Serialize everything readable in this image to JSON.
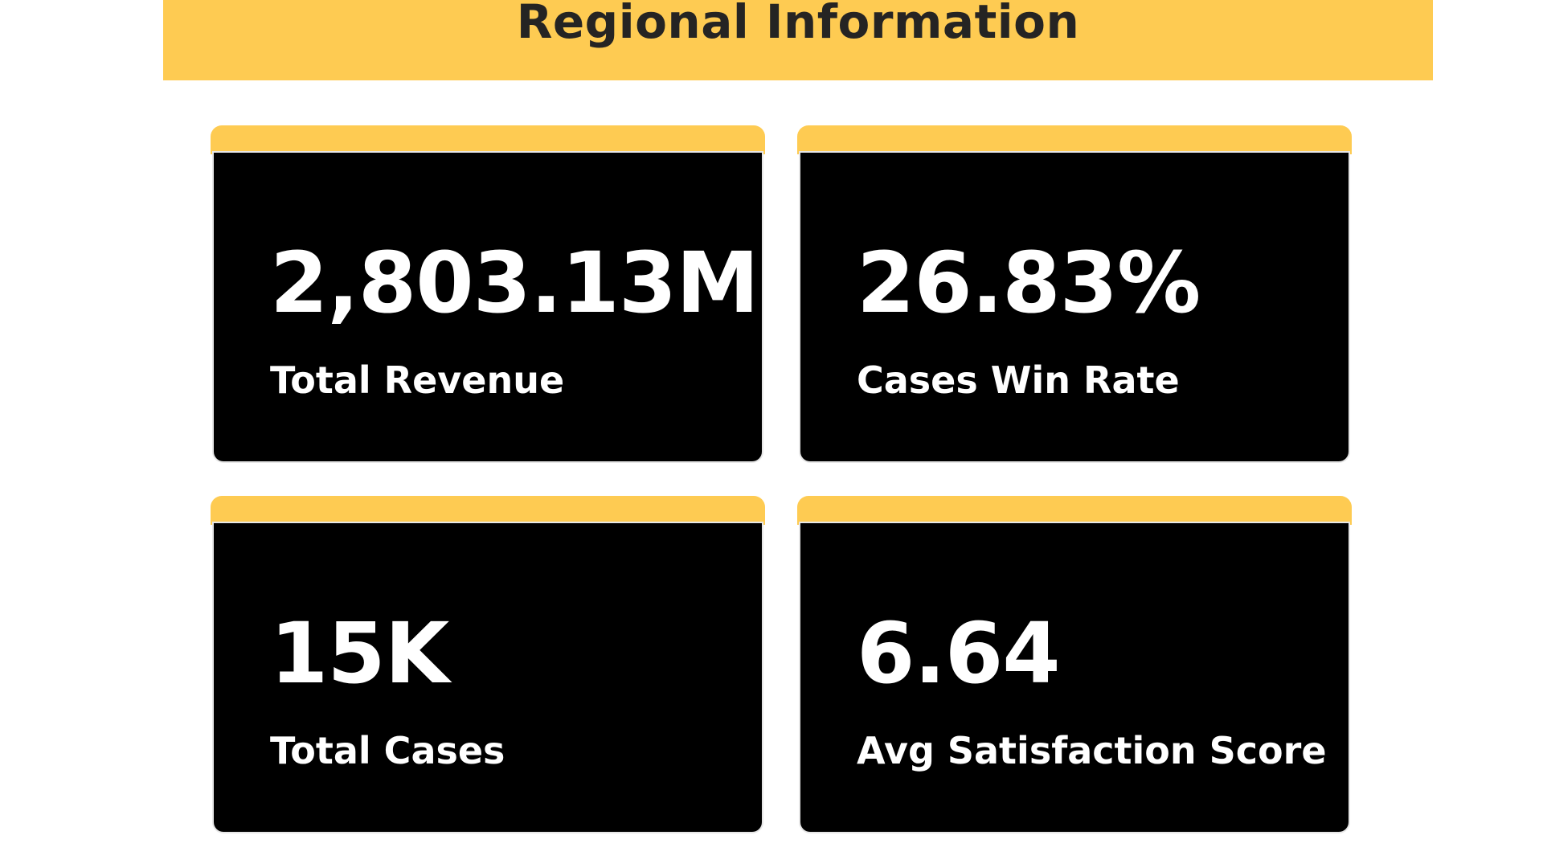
{
  "header": {
    "title": "Regional Information",
    "background_color": "#FECB52",
    "text_color": "#252423"
  },
  "kpi_cards": [
    {
      "value": "2,803.13M",
      "label": "Total Revenue"
    },
    {
      "value": "26.83%",
      "label": "Cases Win Rate"
    },
    {
      "value": "15K",
      "label": "Total Cases"
    },
    {
      "value": "6.64",
      "label": "Avg Satisfaction Score"
    }
  ],
  "colors": {
    "accent": "#FECB52",
    "card_background": "#000000",
    "card_text": "#FFFFFF"
  }
}
